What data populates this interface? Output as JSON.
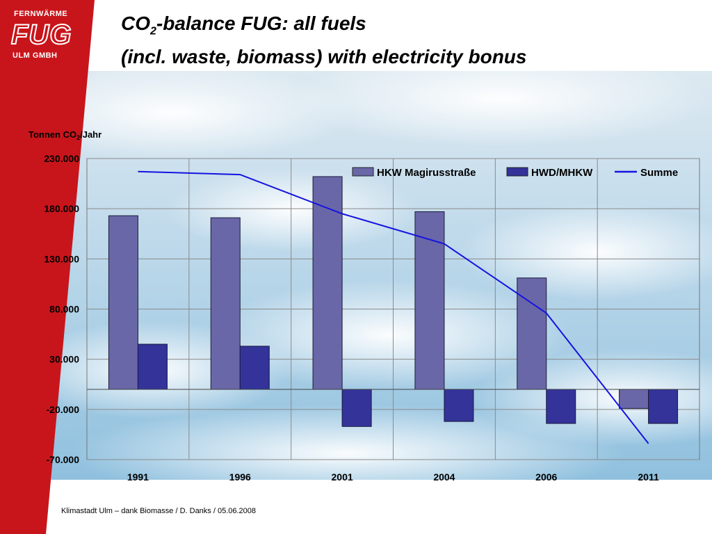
{
  "logo": {
    "line1": "FERNWÄRME",
    "line2": "FUG",
    "line3": "ULM GMBH"
  },
  "title": {
    "line1_prefix": "CO",
    "line1_sub": "2",
    "line1_suffix": "-balance FUG: all fuels",
    "line2": "(incl. waste, biomass) with electricity bonus"
  },
  "footer": "Klimastadt Ulm – dank Biomasse / D. Danks / 05.06.2008",
  "colors": {
    "brand_red": "#c8151b",
    "hkw_bar": "#6a67a8",
    "hwd_bar": "#33339a",
    "summe_line": "#1414e0"
  },
  "chart_data": {
    "type": "bar",
    "ylabel_prefix": "Tonnen CO",
    "ylabel_sub": "2",
    "ylabel_suffix": "/Jahr",
    "ylim": [
      -70000,
      230000
    ],
    "yticks": [
      230000,
      180000,
      130000,
      80000,
      30000,
      -20000,
      -70000
    ],
    "ytick_labels": [
      "230.000",
      "180.000",
      "130.000",
      "80.000",
      "30.000",
      "-20.000",
      "-70.000"
    ],
    "categories": [
      "1991",
      "1996",
      "2001",
      "2004",
      "2006",
      "2011"
    ],
    "grid": true,
    "legend_position": "top-right",
    "series": [
      {
        "name": "HKW Magirusstraße",
        "type": "bar",
        "color": "#6a67a8",
        "values": [
          173000,
          171000,
          212000,
          177000,
          111000,
          -19000
        ]
      },
      {
        "name": "HWD/MHKW",
        "type": "bar",
        "color": "#33339a",
        "values": [
          45000,
          43000,
          -37000,
          -32000,
          -34000,
          -34000
        ]
      },
      {
        "name": "Summe",
        "type": "line",
        "color": "#1414e0",
        "values": [
          217000,
          214000,
          175000,
          145000,
          76000,
          -54000
        ]
      }
    ]
  }
}
